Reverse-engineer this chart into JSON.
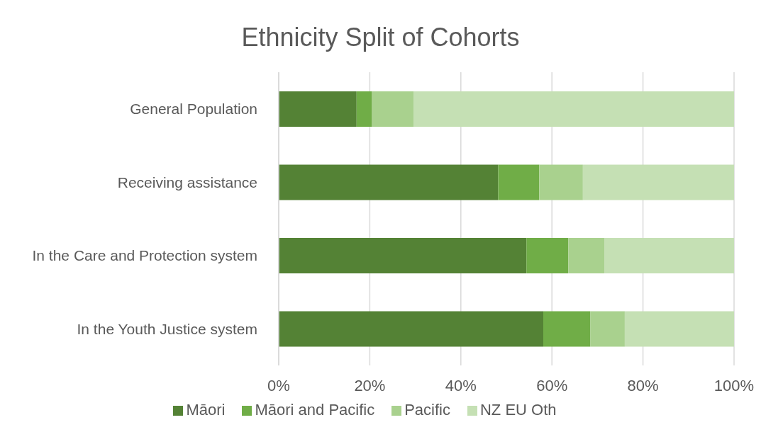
{
  "chart_data": {
    "type": "bar",
    "title": "Ethnicity Split of Cohorts",
    "orientation": "horizontal",
    "stacked": true,
    "categories": [
      "General Population",
      "Receiving assistance",
      "In the Care and Protection system",
      "In the Youth Justice system"
    ],
    "series": [
      {
        "name": "Māori",
        "color": "#548235",
        "values": [
          17.1,
          48.2,
          54.4,
          58.1
        ]
      },
      {
        "name": "Māori and Pacific",
        "color": "#70ad47",
        "values": [
          3.4,
          9.0,
          9.2,
          10.3
        ]
      },
      {
        "name": "Pacific",
        "color": "#a9d18e",
        "values": [
          9.1,
          9.6,
          7.9,
          7.6
        ]
      },
      {
        "name": "NZ EU Oth",
        "color": "#c5e0b4",
        "values": [
          70.4,
          33.2,
          28.5,
          24.0
        ]
      }
    ],
    "xlim": [
      0,
      100
    ],
    "xticks": [
      {
        "value": 0,
        "label": "0%"
      },
      {
        "value": 20,
        "label": "20%"
      },
      {
        "value": 40,
        "label": "40%"
      },
      {
        "value": 60,
        "label": "60%"
      },
      {
        "value": 80,
        "label": "80%"
      },
      {
        "value": 100,
        "label": "100%"
      }
    ],
    "grid": "x",
    "legend": "bottom"
  }
}
